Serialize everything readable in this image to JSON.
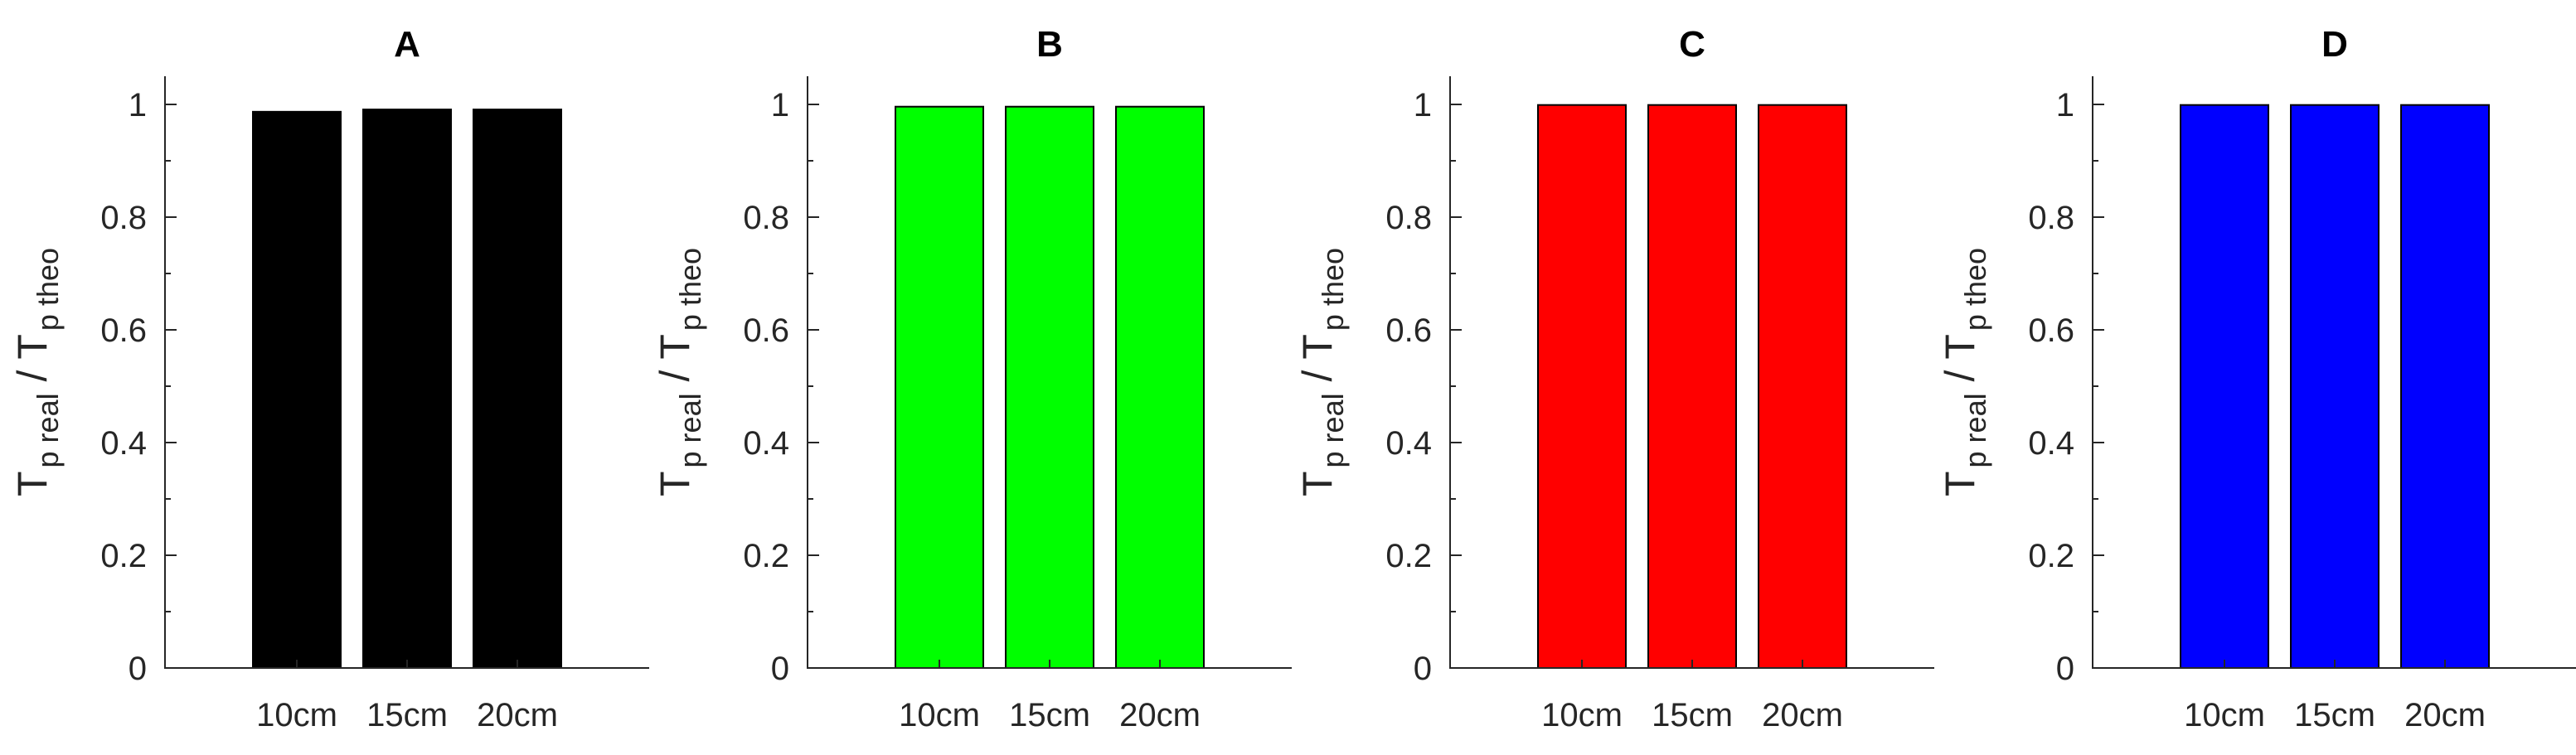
{
  "chart_data": [
    {
      "type": "bar",
      "title": "A",
      "categories": [
        "10cm",
        "15cm",
        "20cm"
      ],
      "values": [
        0.987,
        0.991,
        0.991
      ],
      "color": "#000000",
      "ylabel": {
        "base": "T",
        "sub1": "p real",
        "slash": " / ",
        "base2": "T",
        "sub2": "p theo"
      },
      "xlabel": "",
      "ylim": [
        0,
        1.05
      ],
      "yticks": [
        0,
        0.2,
        0.4,
        0.6,
        0.8,
        1
      ],
      "ytick_labels": [
        "0",
        "0.2",
        "0.4",
        "0.6",
        "0.8",
        "1"
      ],
      "minor_yticks": [
        0.1,
        0.3,
        0.5,
        0.7,
        0.9
      ],
      "grid": false
    },
    {
      "type": "bar",
      "title": "B",
      "categories": [
        "10cm",
        "15cm",
        "20cm"
      ],
      "values": [
        0.996,
        0.996,
        0.996
      ],
      "color": "#00ff00",
      "ylabel": {
        "base": "T",
        "sub1": "p real",
        "slash": " / ",
        "base2": "T",
        "sub2": "p theo"
      },
      "xlabel": "",
      "ylim": [
        0,
        1.05
      ],
      "yticks": [
        0,
        0.2,
        0.4,
        0.6,
        0.8,
        1
      ],
      "ytick_labels": [
        "0",
        "0.2",
        "0.4",
        "0.6",
        "0.8",
        "1"
      ],
      "minor_yticks": [
        0.1,
        0.3,
        0.5,
        0.7,
        0.9
      ],
      "grid": false
    },
    {
      "type": "bar",
      "title": "C",
      "categories": [
        "10cm",
        "15cm",
        "20cm"
      ],
      "values": [
        0.999,
        0.999,
        0.999
      ],
      "color": "#ff0000",
      "ylabel": {
        "base": "T",
        "sub1": "p real",
        "slash": " / ",
        "base2": "T",
        "sub2": "p theo"
      },
      "xlabel": "",
      "ylim": [
        0,
        1.05
      ],
      "yticks": [
        0,
        0.2,
        0.4,
        0.6,
        0.8,
        1
      ],
      "ytick_labels": [
        "0",
        "0.2",
        "0.4",
        "0.6",
        "0.8",
        "1"
      ],
      "minor_yticks": [
        0.1,
        0.3,
        0.5,
        0.7,
        0.9
      ],
      "grid": false
    },
    {
      "type": "bar",
      "title": "D",
      "categories": [
        "10cm",
        "15cm",
        "20cm"
      ],
      "values": [
        0.999,
        0.999,
        0.999
      ],
      "color": "#0000ff",
      "ylabel": {
        "base": "T",
        "sub1": "p real",
        "slash": " / ",
        "base2": "T",
        "sub2": "p theo"
      },
      "xlabel": "",
      "ylim": [
        0,
        1.05
      ],
      "yticks": [
        0,
        0.2,
        0.4,
        0.6,
        0.8,
        1
      ],
      "ytick_labels": [
        "0",
        "0.2",
        "0.4",
        "0.6",
        "0.8",
        "1"
      ],
      "minor_yticks": [
        0.1,
        0.3,
        0.5,
        0.7,
        0.9
      ],
      "grid": false
    }
  ]
}
